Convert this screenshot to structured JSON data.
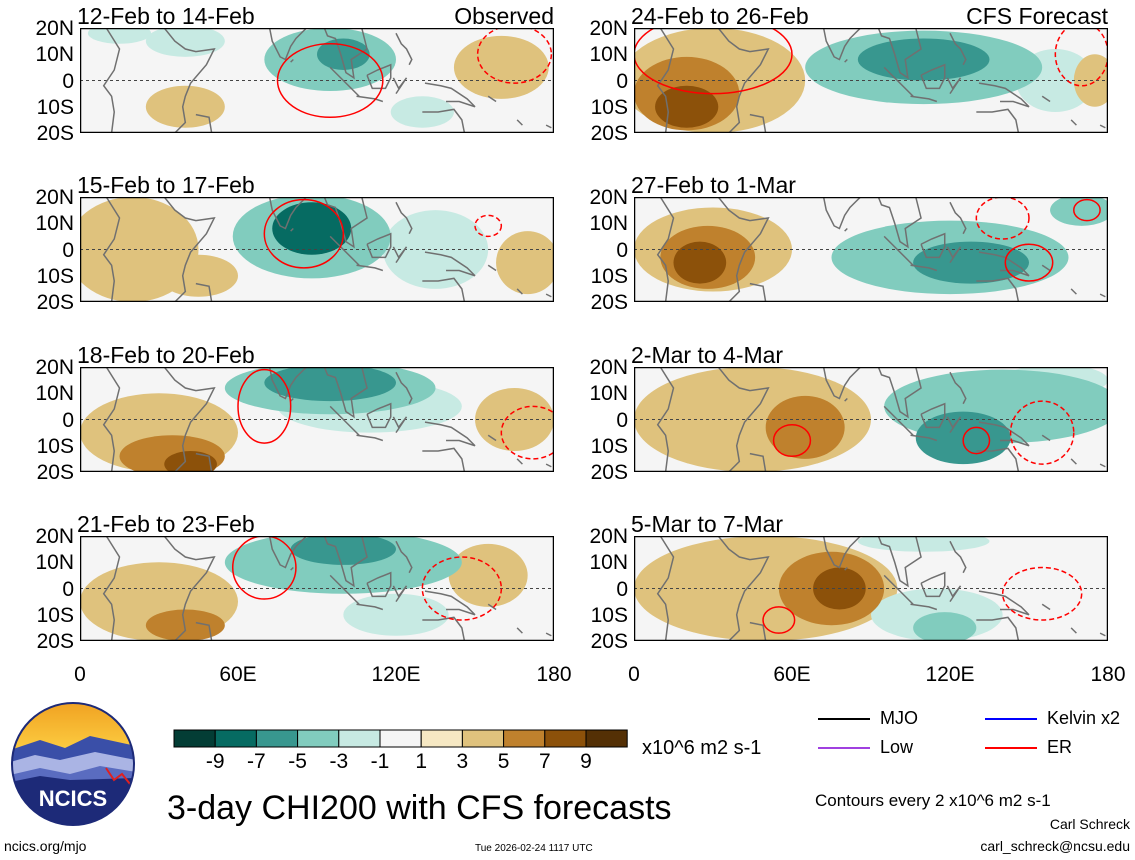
{
  "title": "3-day CHI200 with CFS forecasts",
  "timestamp": "Tue 2026-02-24 1117 UTC",
  "site": "ncics.org/mjo",
  "logo_text": "NCICS",
  "author": "Carl Schreck",
  "email": "carl_schreck@ncsu.edu",
  "contour_note": "Contours every 2 x10^6 m2 s-1",
  "units": "x10^6 m2 s-1",
  "lat_ticks": [
    "20N",
    "10N",
    "0",
    "10S",
    "20S"
  ],
  "lon_ticks": [
    "0",
    "60E",
    "120E",
    "180"
  ],
  "colorbar": {
    "colors": [
      "#033d35",
      "#066b62",
      "#38978f",
      "#81ccbe",
      "#c7eae3",
      "#f5f5f5",
      "#f6e8c3",
      "#dfc27d",
      "#bf812d",
      "#8c510a",
      "#543005"
    ],
    "labels": [
      "-9",
      "-7",
      "-5",
      "-3",
      "-1",
      "1",
      "3",
      "5",
      "7",
      "9"
    ]
  },
  "legend": [
    {
      "label": "MJO",
      "color": "#000000"
    },
    {
      "label": "Kelvin x2",
      "color": "#0000ff"
    },
    {
      "label": "Low",
      "color": "#a040e0"
    },
    {
      "label": "ER",
      "color": "#ff0000"
    }
  ],
  "panels": [
    {
      "title": "12-Feb to 14-Feb",
      "tag": "Observed",
      "blobs": [
        [
          40,
          15,
          15,
          6,
          -3
        ],
        [
          95,
          8,
          25,
          12,
          -5
        ],
        [
          100,
          10,
          10,
          6,
          -7
        ],
        [
          40,
          -10,
          15,
          8,
          3
        ],
        [
          160,
          5,
          18,
          12,
          3
        ],
        [
          130,
          -12,
          12,
          6,
          -3
        ],
        [
          15,
          18,
          12,
          4,
          -3
        ]
      ],
      "er": [
        [
          95,
          0,
          20,
          14,
          0
        ],
        [
          165,
          10,
          14,
          11,
          1
        ]
      ]
    },
    {
      "title": "15-Feb to 17-Feb",
      "tag": "",
      "blobs": [
        [
          20,
          0,
          25,
          20,
          3
        ],
        [
          45,
          -10,
          15,
          8,
          3
        ],
        [
          88,
          5,
          30,
          16,
          -5
        ],
        [
          88,
          8,
          15,
          10,
          -9
        ],
        [
          135,
          0,
          20,
          15,
          -3
        ],
        [
          170,
          -5,
          12,
          12,
          3
        ]
      ],
      "er": [
        [
          85,
          6,
          15,
          13,
          0
        ],
        [
          155,
          9,
          5,
          4,
          1
        ]
      ]
    },
    {
      "title": "18-Feb to 20-Feb",
      "tag": "",
      "blobs": [
        [
          30,
          -5,
          30,
          15,
          3
        ],
        [
          35,
          -14,
          20,
          8,
          5
        ],
        [
          42,
          -17,
          10,
          5,
          7
        ],
        [
          95,
          12,
          40,
          10,
          -5
        ],
        [
          95,
          14,
          25,
          7,
          -7
        ],
        [
          110,
          5,
          35,
          10,
          -3
        ],
        [
          165,
          0,
          15,
          12,
          3
        ]
      ],
      "er": [
        [
          70,
          5,
          10,
          14,
          0
        ],
        [
          172,
          -5,
          12,
          10,
          1
        ]
      ]
    },
    {
      "title": "21-Feb to 23-Feb",
      "tag": "",
      "blobs": [
        [
          30,
          -5,
          30,
          15,
          3
        ],
        [
          40,
          -14,
          15,
          6,
          5
        ],
        [
          100,
          10,
          45,
          12,
          -5
        ],
        [
          100,
          15,
          20,
          6,
          -7
        ],
        [
          155,
          5,
          15,
          12,
          3
        ],
        [
          120,
          -10,
          20,
          8,
          -3
        ]
      ],
      "er": [
        [
          70,
          8,
          12,
          12,
          0
        ],
        [
          145,
          0,
          15,
          12,
          1
        ]
      ]
    },
    {
      "title": "24-Feb to 26-Feb",
      "tag": "CFS Forecast",
      "blobs": [
        [
          30,
          0,
          35,
          20,
          3
        ],
        [
          20,
          -5,
          20,
          14,
          5
        ],
        [
          20,
          -10,
          12,
          8,
          7
        ],
        [
          110,
          5,
          45,
          14,
          -5
        ],
        [
          110,
          8,
          25,
          8,
          -7
        ],
        [
          160,
          0,
          15,
          12,
          -3
        ],
        [
          175,
          0,
          8,
          10,
          3
        ]
      ],
      "er": [
        [
          30,
          10,
          30,
          15,
          0
        ],
        [
          170,
          10,
          10,
          12,
          1
        ]
      ]
    },
    {
      "title": "27-Feb to 1-Mar",
      "tag": "",
      "blobs": [
        [
          30,
          0,
          30,
          16,
          3
        ],
        [
          28,
          -3,
          18,
          12,
          5
        ],
        [
          25,
          -5,
          10,
          8,
          7
        ],
        [
          120,
          -3,
          45,
          14,
          -5
        ],
        [
          128,
          -5,
          22,
          8,
          -7
        ],
        [
          170,
          15,
          12,
          6,
          -5
        ],
        [
          68,
          0,
          8,
          6,
          -1
        ]
      ],
      "er": [
        [
          150,
          -5,
          9,
          7,
          0
        ],
        [
          140,
          12,
          10,
          8,
          1
        ],
        [
          172,
          15,
          5,
          4,
          0
        ]
      ]
    },
    {
      "title": "2-Mar to 4-Mar",
      "tag": "",
      "blobs": [
        [
          45,
          0,
          45,
          20,
          3
        ],
        [
          65,
          -3,
          15,
          12,
          5
        ],
        [
          140,
          5,
          45,
          14,
          -5
        ],
        [
          125,
          -7,
          18,
          10,
          -7
        ],
        [
          160,
          15,
          20,
          6,
          -3
        ]
      ],
      "er": [
        [
          60,
          -8,
          7,
          6,
          0
        ],
        [
          130,
          -8,
          5,
          5,
          0
        ],
        [
          155,
          -5,
          12,
          12,
          1
        ]
      ]
    },
    {
      "title": "5-Mar to 7-Mar",
      "tag": "",
      "blobs": [
        [
          50,
          0,
          50,
          20,
          3
        ],
        [
          75,
          0,
          20,
          14,
          5
        ],
        [
          78,
          0,
          10,
          8,
          7
        ],
        [
          115,
          -10,
          25,
          10,
          -3
        ],
        [
          118,
          -15,
          12,
          6,
          -5
        ],
        [
          160,
          0,
          18,
          14,
          -1
        ],
        [
          110,
          18,
          25,
          4,
          -3
        ]
      ],
      "er": [
        [
          55,
          -12,
          6,
          5,
          0
        ],
        [
          155,
          -2,
          15,
          10,
          1
        ]
      ]
    }
  ]
}
